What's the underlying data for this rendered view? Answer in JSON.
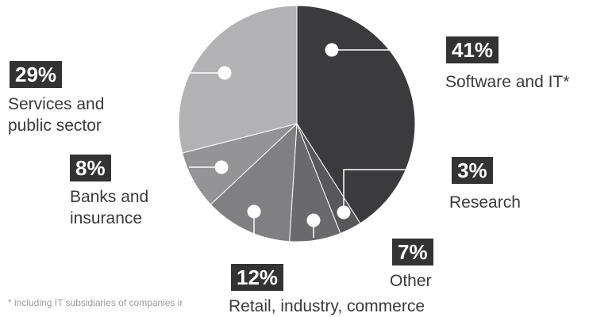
{
  "chart_data": {
    "type": "pie",
    "slices": [
      {
        "label": "Software and IT*",
        "percent_label": "41%",
        "value": 41,
        "color": "#3b3b3d"
      },
      {
        "label": "Research",
        "percent_label": "3%",
        "value": 3,
        "color": "#58585a"
      },
      {
        "label": "Other",
        "percent_label": "7%",
        "value": 7,
        "color": "#6a6a6c"
      },
      {
        "label": "Retail, industry, commerce",
        "percent_label": "12%",
        "value": 12,
        "color": "#808082"
      },
      {
        "label": "Banks and insurance",
        "percent_label": "8%",
        "value": 8,
        "color": "#949496"
      },
      {
        "label": "Services and public sector",
        "percent_label": "29%",
        "value": 29,
        "color": "#b2b2b4"
      }
    ],
    "footnote": "* including IT subsidiaries of companies in other sectors"
  }
}
